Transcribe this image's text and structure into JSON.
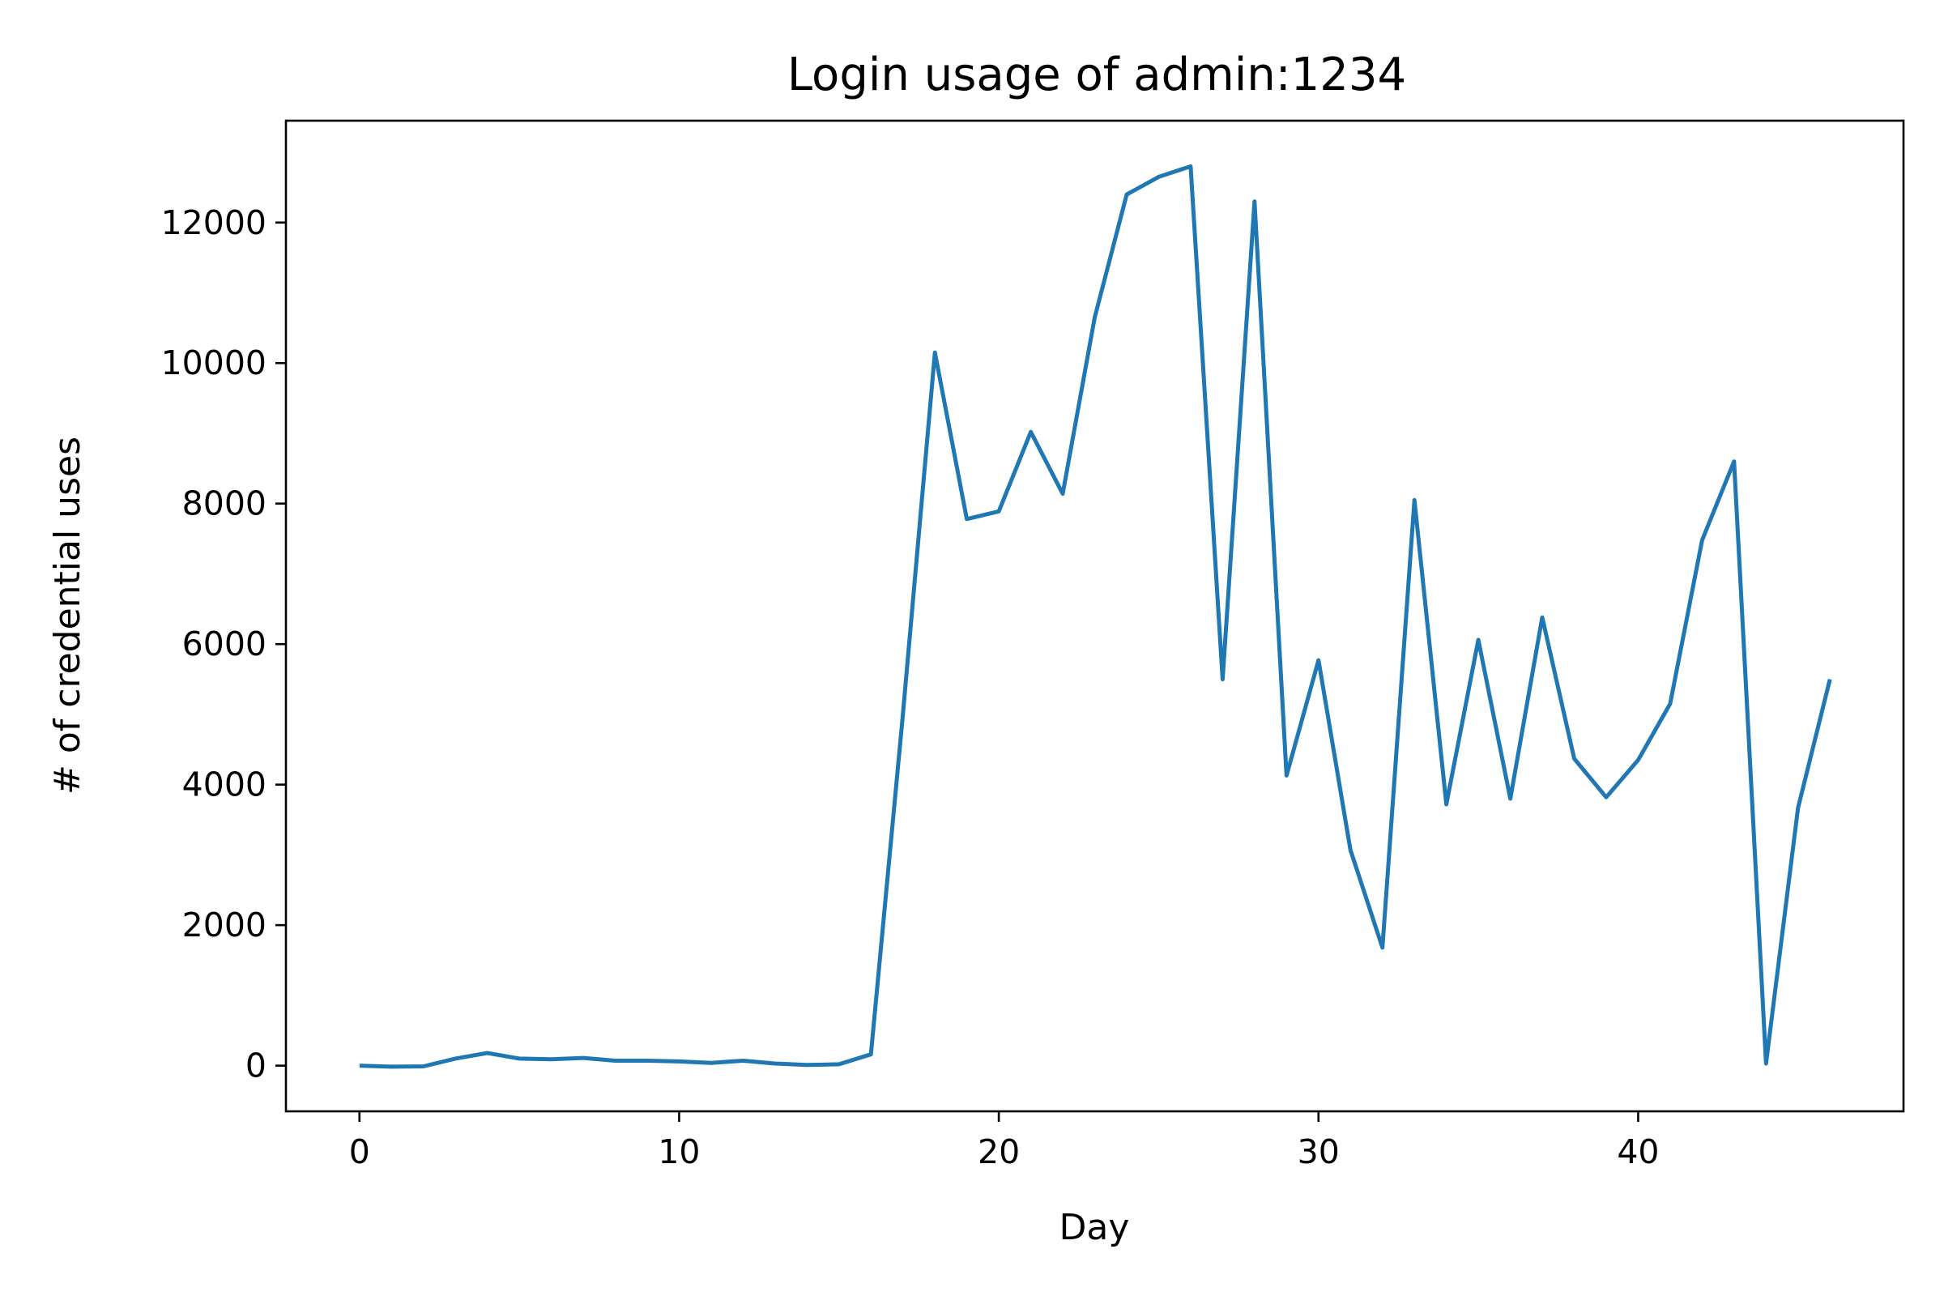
{
  "chart_data": {
    "type": "line",
    "title": "Login usage of admin:1234",
    "xlabel": "Day",
    "ylabel": "# of credential uses",
    "xlim": [
      -2.3,
      48.3
    ],
    "ylim": [
      -650,
      13450
    ],
    "xticks": [
      0,
      10,
      20,
      30,
      40
    ],
    "yticks": [
      0,
      2000,
      4000,
      6000,
      8000,
      10000,
      12000
    ],
    "grid": false,
    "line_color": "#1f77b4",
    "series": [
      {
        "x": [
          0,
          1,
          2,
          3,
          4,
          5,
          6,
          7,
          8,
          9,
          10,
          11,
          12,
          13,
          14,
          15,
          16,
          17,
          18,
          19,
          20,
          21,
          22,
          23,
          24,
          25,
          26,
          27,
          28,
          29,
          30,
          31,
          32,
          33,
          34,
          35,
          36,
          37,
          38,
          39,
          40,
          41,
          42,
          43,
          44,
          45,
          46
        ],
        "values": [
          0,
          -15,
          -10,
          100,
          180,
          100,
          90,
          110,
          70,
          70,
          60,
          40,
          70,
          30,
          10,
          20,
          160,
          5000,
          10150,
          7780,
          7890,
          9020,
          8140,
          10650,
          12400,
          12650,
          12800,
          5500,
          12300,
          4130,
          5770,
          3070,
          1680,
          8050,
          3720,
          6060,
          3800,
          6380,
          4370,
          3820,
          4350,
          5150,
          7480,
          8600,
          30,
          3670,
          5500
        ]
      }
    ]
  }
}
